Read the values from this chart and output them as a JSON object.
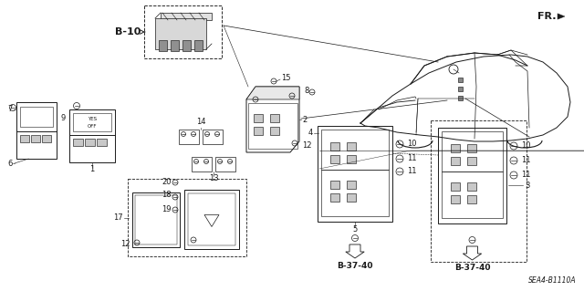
{
  "bg_color": "#ffffff",
  "diagram_ref": "SEA4–B1110A",
  "diagram_ref2": "SEA4-B1110A",
  "fr_label": "FR.",
  "b10_label": "B-10",
  "b3740_label": "B-37-40",
  "lc": "#1a1a1a",
  "lw": 0.7
}
